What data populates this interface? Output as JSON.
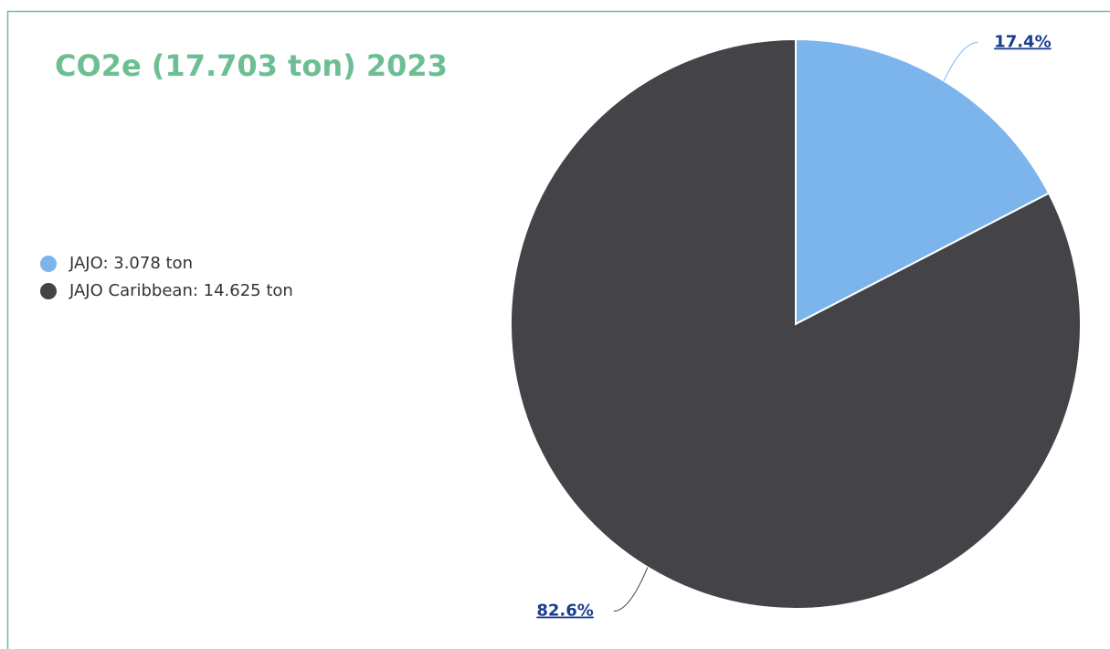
{
  "chart_data": {
    "type": "pie",
    "title": "CO2e (17.703 ton) 2023",
    "categories": [
      "JAJO: 3.078 ton",
      "JAJO Caribbean: 14.625 ton"
    ],
    "values": [
      17.4,
      82.6
    ],
    "value_labels": [
      "17.4%",
      "82.6%"
    ],
    "colors": [
      "#7cb5ec",
      "#434348"
    ],
    "legend": "left"
  }
}
